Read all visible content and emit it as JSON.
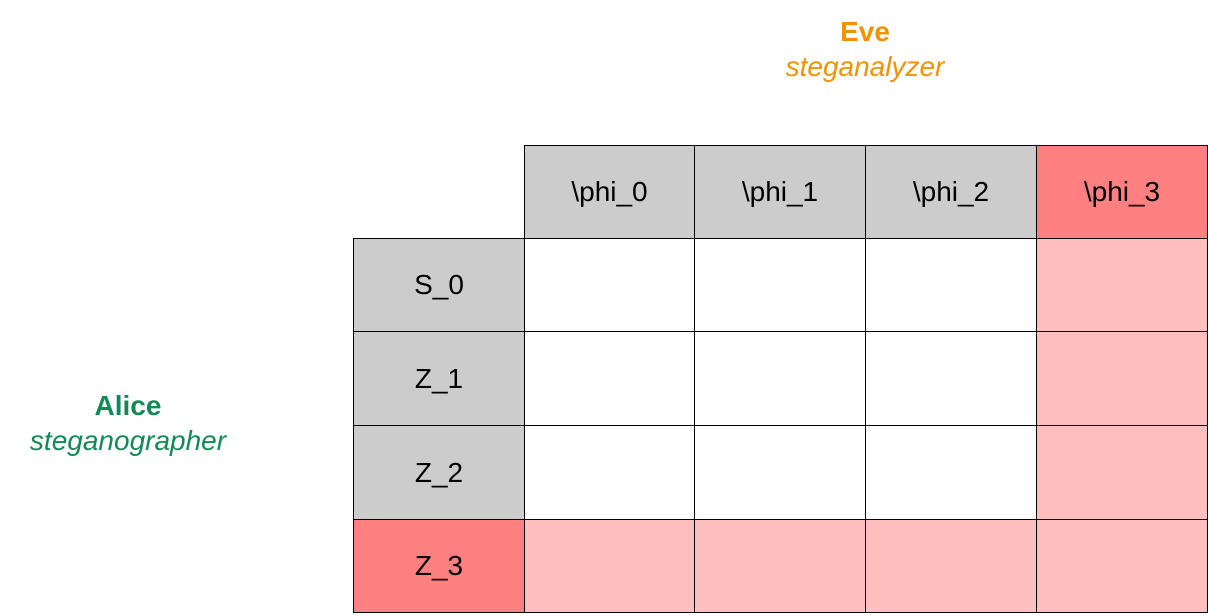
{
  "eve": {
    "name": "Eve",
    "role": "steganalyzer",
    "color": "#f39200"
  },
  "alice": {
    "name": "Alice",
    "role": "steganographer",
    "color": "#128a55"
  },
  "matrix": {
    "column_headers": [
      "\\phi_0",
      "\\phi_1",
      "\\phi_2",
      "\\phi_3"
    ],
    "row_headers": [
      "S_0",
      "Z_1",
      "Z_2",
      "Z_3"
    ],
    "highlighted_column": 3,
    "highlighted_row": 3,
    "colors": {
      "header": "#cccccc",
      "header_highlight": "#ff8080",
      "cell": "#ffffff",
      "cell_highlight": "#ffbfbf"
    }
  }
}
